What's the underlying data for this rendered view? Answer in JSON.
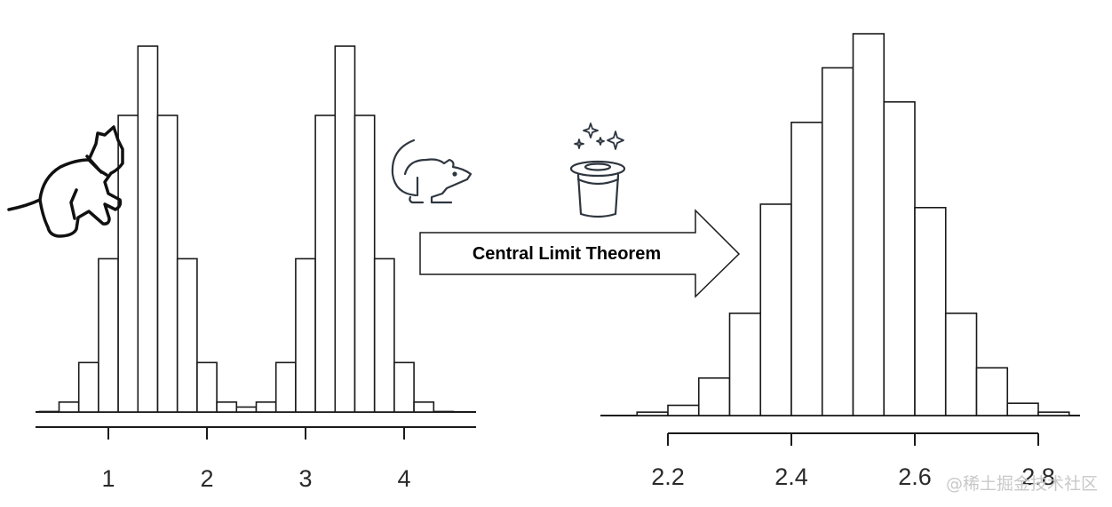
{
  "arrow": {
    "label": "Central Limit Theorem"
  },
  "watermark": "@稀土掘金技术社区",
  "icons": [
    "cat-icon",
    "mouse-icon",
    "magic-hat-icon",
    "sparkles-icon"
  ],
  "colors": {
    "stroke": "#1a1a1a",
    "fill": "#ffffff",
    "icon_stroke": "#2f3640"
  },
  "chart_data": [
    {
      "type": "bar",
      "title": "",
      "xlabel": "",
      "ylabel": "",
      "x_ticks": [
        "1",
        "2",
        "3",
        "4"
      ],
      "bin_width": 0.2,
      "bin_start": 0.3,
      "values": [
        0.005,
        0.1,
        0.5,
        1.55,
        3.0,
        3.7,
        3.0,
        1.55,
        0.5,
        0.1,
        0.05,
        0.1,
        0.5,
        1.55,
        3.0,
        3.7,
        3.0,
        1.55,
        0.5,
        0.1,
        0.005
      ],
      "ylim": [
        0,
        4
      ]
    },
    {
      "type": "bar",
      "title": "",
      "xlabel": "",
      "ylabel": "",
      "x_ticks": [
        "2.2",
        "2.4",
        "2.6",
        "2.8"
      ],
      "bin_width": 0.05,
      "bin_start": 2.15,
      "values": [
        0.05,
        0.15,
        0.55,
        1.5,
        3.1,
        4.3,
        5.1,
        5.6,
        4.6,
        3.05,
        1.5,
        0.7,
        0.18,
        0.05
      ],
      "ylim": [
        0,
        6
      ]
    }
  ]
}
